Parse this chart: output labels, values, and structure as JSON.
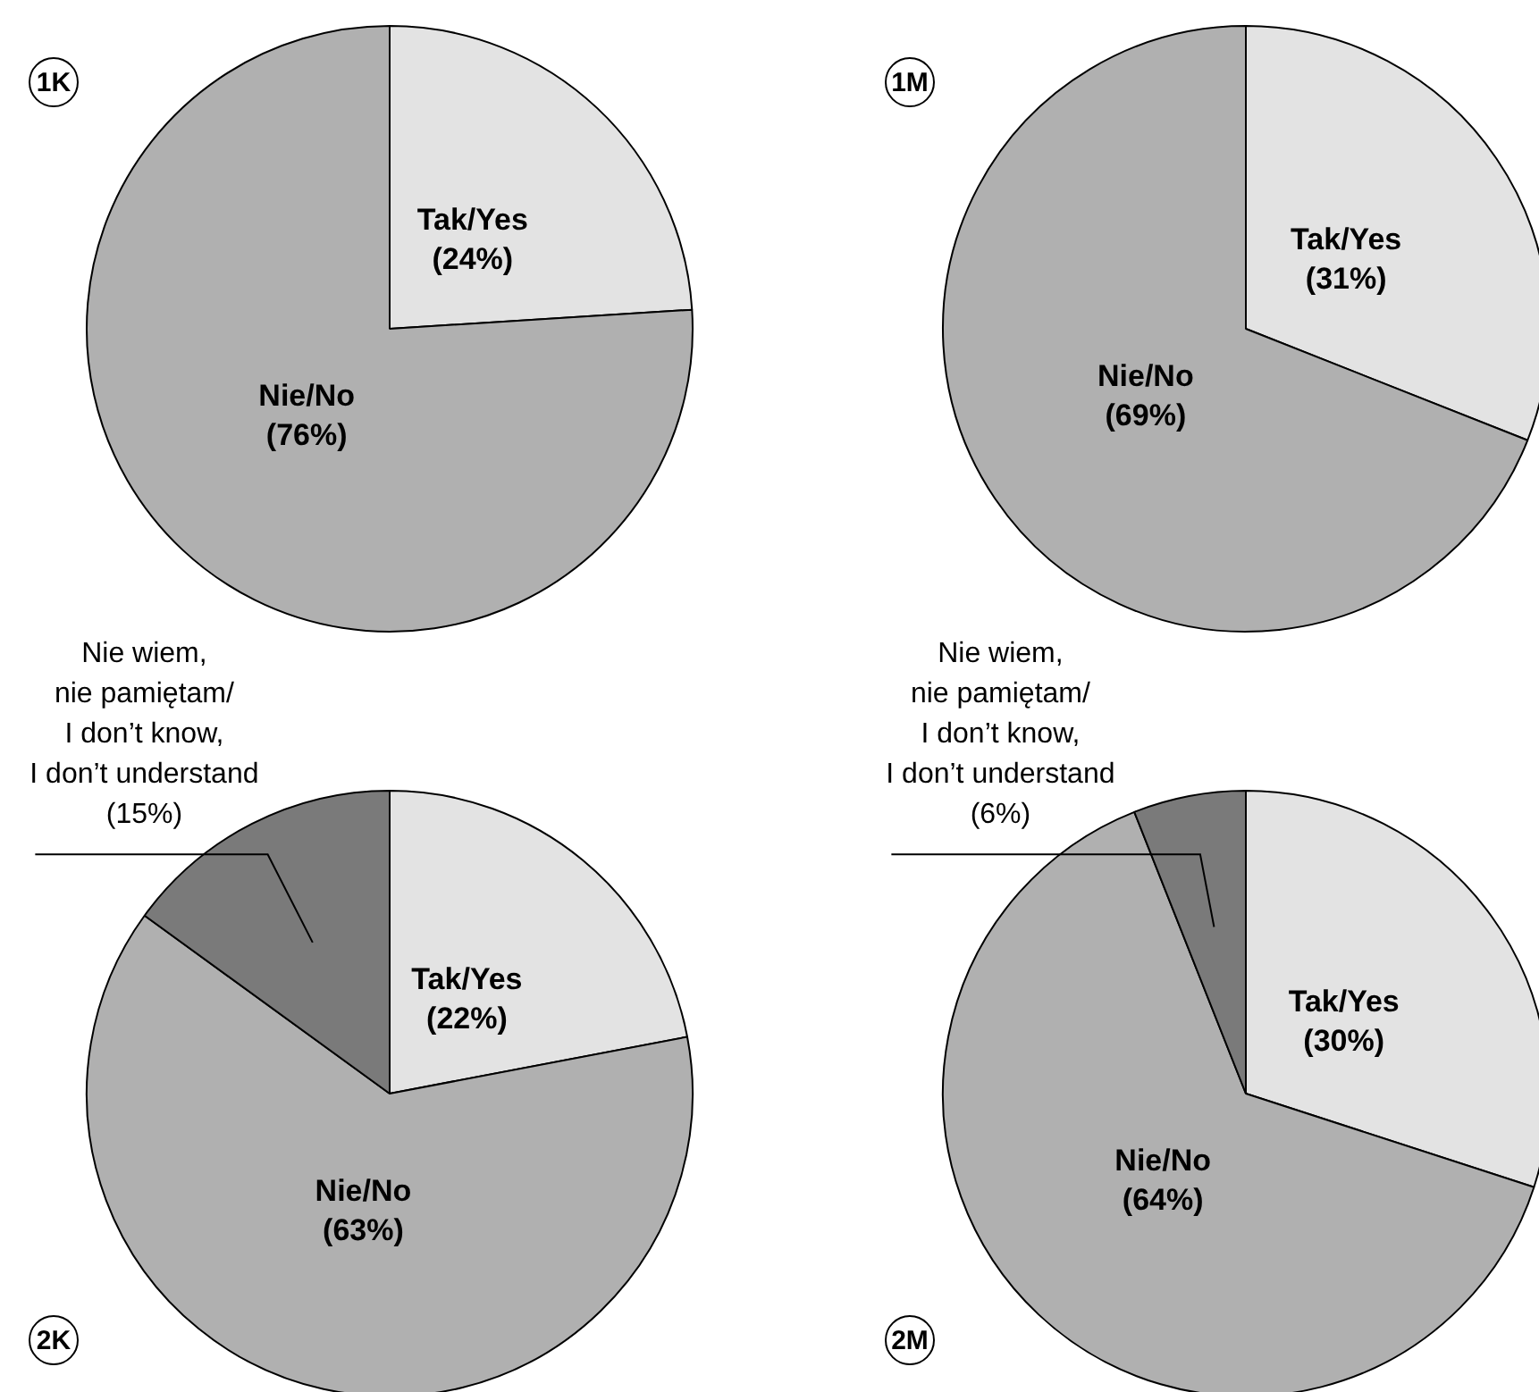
{
  "chart_data": [
    {
      "type": "pie",
      "title": "1K",
      "categories": [
        "Tak/Yes",
        "Nie/No"
      ],
      "values": [
        24,
        76
      ],
      "colors": [
        "#e3e3e3",
        "#b0b0b0"
      ],
      "value_labels": [
        "(24%)",
        "(76%)"
      ]
    },
    {
      "type": "pie",
      "title": "1M",
      "categories": [
        "Tak/Yes",
        "Nie/No"
      ],
      "values": [
        31,
        69
      ],
      "colors": [
        "#e3e3e3",
        "#b0b0b0"
      ],
      "value_labels": [
        "(31%)",
        "(69%)"
      ]
    },
    {
      "type": "pie",
      "title": "2K",
      "categories": [
        "Tak/Yes",
        "Nie/No",
        "Nie wiem,\nnie pamiętam/\nI don’t know,\nI don’t understand"
      ],
      "values": [
        22,
        63,
        15
      ],
      "colors": [
        "#e3e3e3",
        "#b0b0b0",
        "#7a7a7a"
      ],
      "value_labels": [
        "(22%)",
        "(63%)",
        "(15%)"
      ]
    },
    {
      "type": "pie",
      "title": "2M",
      "categories": [
        "Tak/Yes",
        "Nie/No",
        "Nie wiem,\nnie pamiętam/\nI don’t know,\nI don’t understand"
      ],
      "values": [
        30,
        64,
        6
      ],
      "colors": [
        "#e3e3e3",
        "#b0b0b0",
        "#7a7a7a"
      ],
      "value_labels": [
        "(30%)",
        "(64%)",
        "(6%)"
      ]
    }
  ]
}
